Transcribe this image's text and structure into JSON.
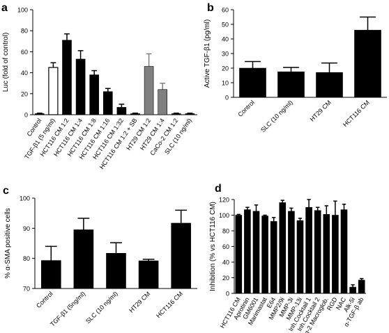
{
  "chart_data": [
    {
      "panel": "a",
      "type": "bar",
      "ylabel": "Luc (fold of control)",
      "ylim": [
        0,
        100
      ],
      "yticks": [
        0,
        20,
        40,
        60,
        80,
        100
      ],
      "categories": [
        "Control",
        "TGF-β1 (5 ng/ml)",
        "HCT116 CM 1:2",
        "HCT116 CM 1:4",
        "HCT116 CM 1:8",
        "HCT116 CM 1:16",
        "HCT116 CM 1:32",
        "HCT116 CM 1:2 + SB",
        "HT29 CM 1:2",
        "HT29 CM 1:4",
        "CaCo-2 CM 1:2",
        "SLC (10 ng/ml)"
      ],
      "values": [
        1,
        45,
        71,
        53,
        38,
        22,
        7,
        1,
        46,
        24,
        1,
        1
      ],
      "errors": [
        0.5,
        4.5,
        6,
        8,
        4,
        3,
        3,
        0.5,
        12,
        6,
        0.5,
        0.5
      ],
      "colors": [
        "#000000",
        "#ffffff",
        "#000000",
        "#000000",
        "#000000",
        "#000000",
        "#000000",
        "#000000",
        "#808080",
        "#808080",
        "#000000",
        "#000000"
      ]
    },
    {
      "panel": "b",
      "type": "bar",
      "ylabel": "Active TGF-β1 (pg/ml)",
      "ylim": [
        0,
        60
      ],
      "yticks": [
        0,
        10,
        20,
        30,
        40,
        50,
        60
      ],
      "categories": [
        "Control",
        "SLC (10 ng/ml)",
        "HT29 CM",
        "HCT116 CM"
      ],
      "values": [
        20,
        17.5,
        17,
        46
      ],
      "errors": [
        4.5,
        3,
        6.5,
        9
      ],
      "colors": [
        "#000000",
        "#000000",
        "#000000",
        "#000000"
      ]
    },
    {
      "panel": "c",
      "type": "bar",
      "ylabel": "% α-SMA positive cells",
      "ylim": [
        70,
        100
      ],
      "yticks": [
        70,
        80,
        90,
        100
      ],
      "categories": [
        "Control",
        "TGF-β1 (5ng/ml)",
        "SLC (10 ng/ml)",
        "HT29 CM",
        "HCT116 CM"
      ],
      "values": [
        79.3,
        89.5,
        81.7,
        79.2,
        91.7
      ],
      "errors": [
        4.7,
        3.8,
        3.5,
        0.5,
        4.3
      ],
      "colors": [
        "#000000",
        "#000000",
        "#000000",
        "#000000",
        "#000000"
      ]
    },
    {
      "panel": "d",
      "type": "bar",
      "ylabel": "Inhibition (% vs HCT116 CM)",
      "ylim": [
        0,
        120
      ],
      "yticks": [
        0,
        20,
        40,
        60,
        80,
        100,
        120
      ],
      "categories": [
        "HCT116 CM",
        "Aprotinin",
        "GM6001",
        "Marimastat",
        "E64",
        "MMP2/9i",
        "MMP-3i",
        "MMP-13i",
        "Inh.Cocktail 1",
        "Inh.Cocktail 2",
        "α-2 Macroglob.",
        "RGD",
        "NAC",
        "Alk-5i",
        "α-TGF-β ab"
      ],
      "values": [
        100,
        107,
        105,
        99,
        92,
        116,
        105,
        93,
        110,
        106,
        101,
        100,
        107,
        8,
        17
      ],
      "errors": [
        1,
        3,
        8,
        1,
        5,
        3,
        4,
        3,
        10,
        4,
        11,
        18,
        7,
        3,
        2
      ],
      "colors": [
        "#000000",
        "#000000",
        "#000000",
        "#000000",
        "#000000",
        "#000000",
        "#000000",
        "#000000",
        "#000000",
        "#000000",
        "#000000",
        "#000000",
        "#000000",
        "#000000",
        "#000000"
      ]
    }
  ],
  "panel_labels": [
    "a",
    "b",
    "c",
    "d"
  ]
}
